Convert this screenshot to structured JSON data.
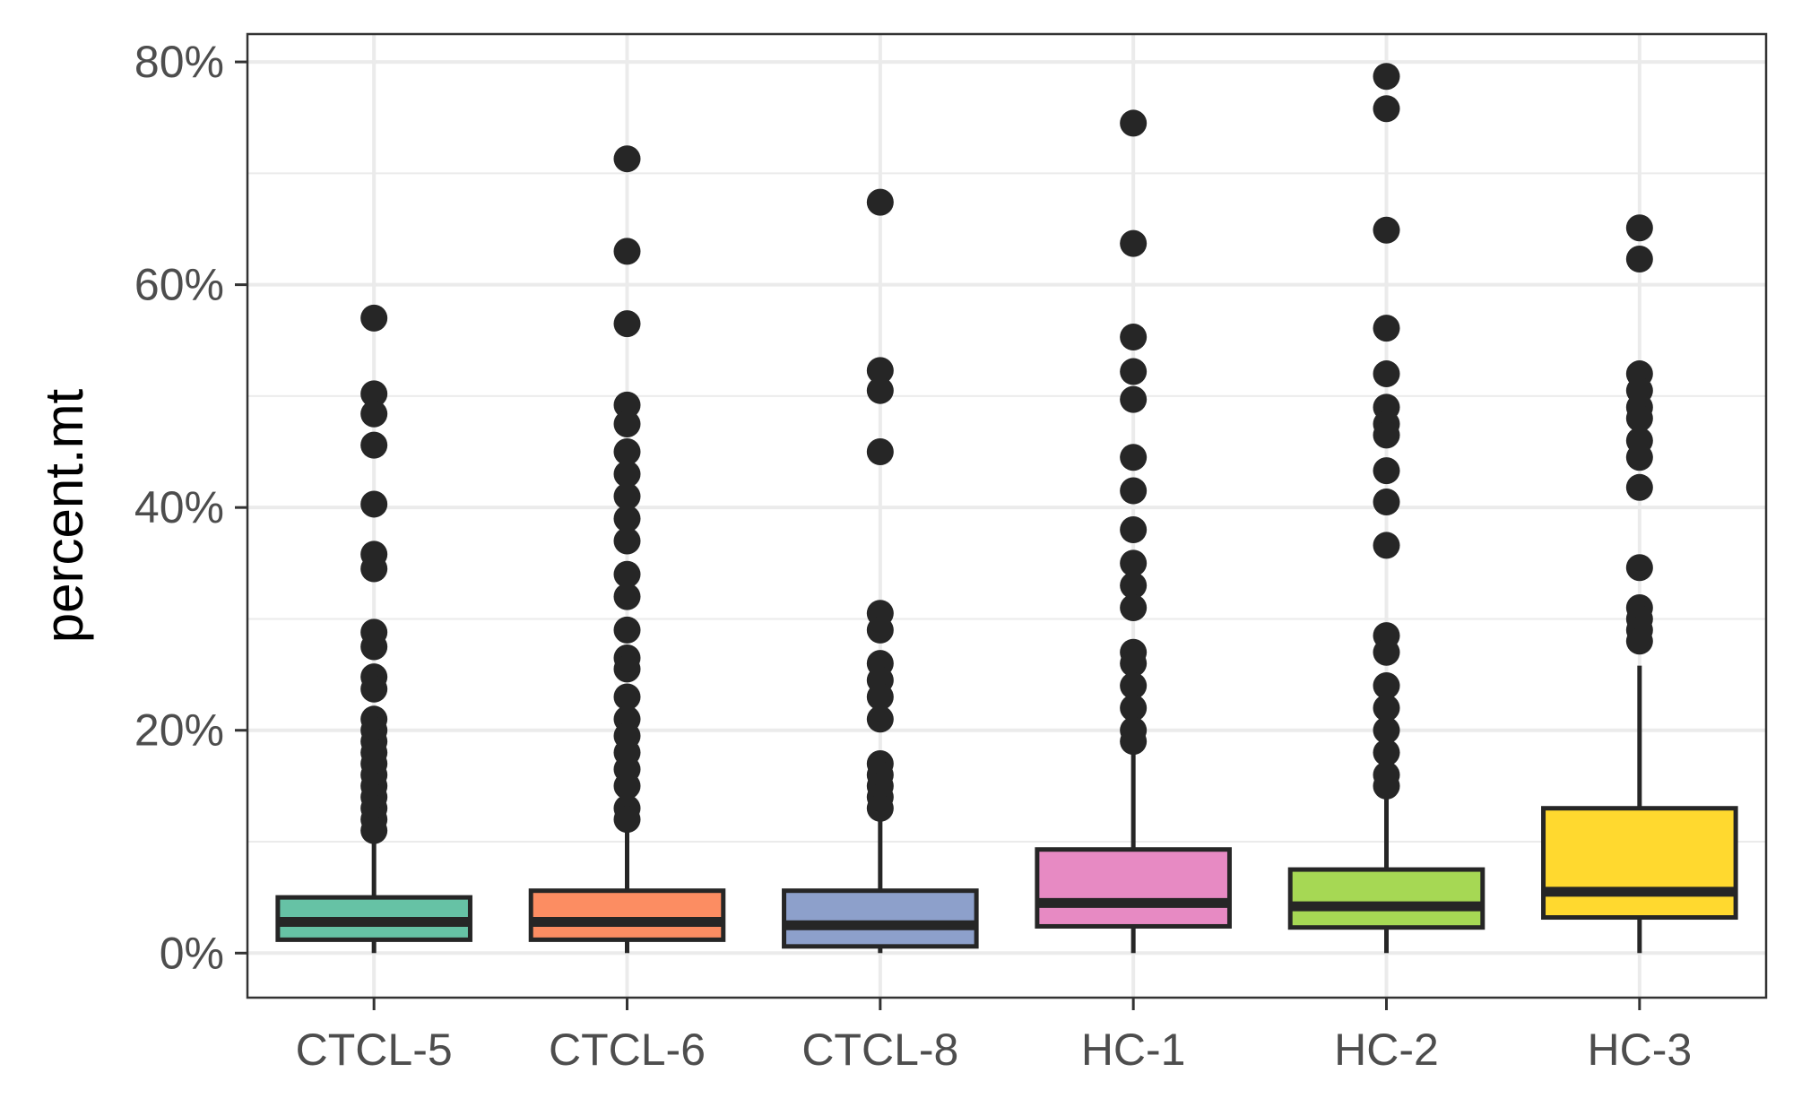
{
  "chart_data": {
    "type": "boxplot",
    "title": "",
    "xlabel": "",
    "ylabel": "percent.mt",
    "ylim": [
      -0.04,
      0.825
    ],
    "yticks": [
      0,
      0.2,
      0.4,
      0.6,
      0.8
    ],
    "ytick_labels": [
      "0%",
      "20%",
      "40%",
      "60%",
      "80%"
    ],
    "grid": true,
    "legend": "none",
    "categories": [
      "CTCL-5",
      "CTCL-6",
      "CTCL-8",
      "HC-1",
      "HC-2",
      "HC-3"
    ],
    "series": [
      {
        "category": "CTCL-5",
        "color": "#66C2A5",
        "whisker_low": 0.0,
        "q1": 0.012,
        "median": 0.028,
        "q3": 0.05,
        "whisker_high": 0.105,
        "outliers": [
          0.57,
          0.502,
          0.484,
          0.456,
          0.403,
          0.358,
          0.345,
          0.288,
          0.275,
          0.248,
          0.237,
          0.21,
          0.2,
          0.19,
          0.18,
          0.17,
          0.16,
          0.15,
          0.14,
          0.13,
          0.12,
          0.11
        ]
      },
      {
        "category": "CTCL-6",
        "color": "#FC8D62",
        "whisker_low": 0.0,
        "q1": 0.012,
        "median": 0.028,
        "q3": 0.056,
        "whisker_high": 0.11,
        "outliers": [
          0.713,
          0.63,
          0.565,
          0.492,
          0.475,
          0.45,
          0.43,
          0.41,
          0.39,
          0.37,
          0.34,
          0.32,
          0.29,
          0.265,
          0.255,
          0.23,
          0.21,
          0.195,
          0.18,
          0.165,
          0.15,
          0.13,
          0.12
        ]
      },
      {
        "category": "CTCL-8",
        "color": "#8DA0CB",
        "whisker_low": 0.0,
        "q1": 0.006,
        "median": 0.025,
        "q3": 0.056,
        "whisker_high": 0.12,
        "outliers": [
          0.674,
          0.523,
          0.505,
          0.45,
          0.305,
          0.29,
          0.26,
          0.245,
          0.23,
          0.21,
          0.17,
          0.16,
          0.15,
          0.14,
          0.13
        ]
      },
      {
        "category": "HC-1",
        "color": "#E78AC3",
        "whisker_low": 0.0,
        "q1": 0.024,
        "median": 0.045,
        "q3": 0.093,
        "whisker_high": 0.18,
        "outliers": [
          0.745,
          0.637,
          0.553,
          0.522,
          0.497,
          0.445,
          0.415,
          0.38,
          0.35,
          0.33,
          0.31,
          0.27,
          0.26,
          0.24,
          0.22,
          0.2,
          0.19
        ]
      },
      {
        "category": "HC-2",
        "color": "#A6D854",
        "whisker_low": 0.0,
        "q1": 0.023,
        "median": 0.042,
        "q3": 0.075,
        "whisker_high": 0.14,
        "outliers": [
          0.787,
          0.758,
          0.649,
          0.561,
          0.52,
          0.49,
          0.475,
          0.465,
          0.433,
          0.405,
          0.366,
          0.285,
          0.27,
          0.24,
          0.22,
          0.2,
          0.18,
          0.16,
          0.15
        ]
      },
      {
        "category": "HC-3",
        "color": "#FFD92F",
        "whisker_low": 0.0,
        "q1": 0.032,
        "median": 0.055,
        "q3": 0.13,
        "whisker_high": 0.258,
        "outliers": [
          0.651,
          0.623,
          0.52,
          0.505,
          0.49,
          0.48,
          0.46,
          0.445,
          0.418,
          0.346,
          0.31,
          0.3,
          0.29,
          0.28
        ]
      }
    ]
  }
}
